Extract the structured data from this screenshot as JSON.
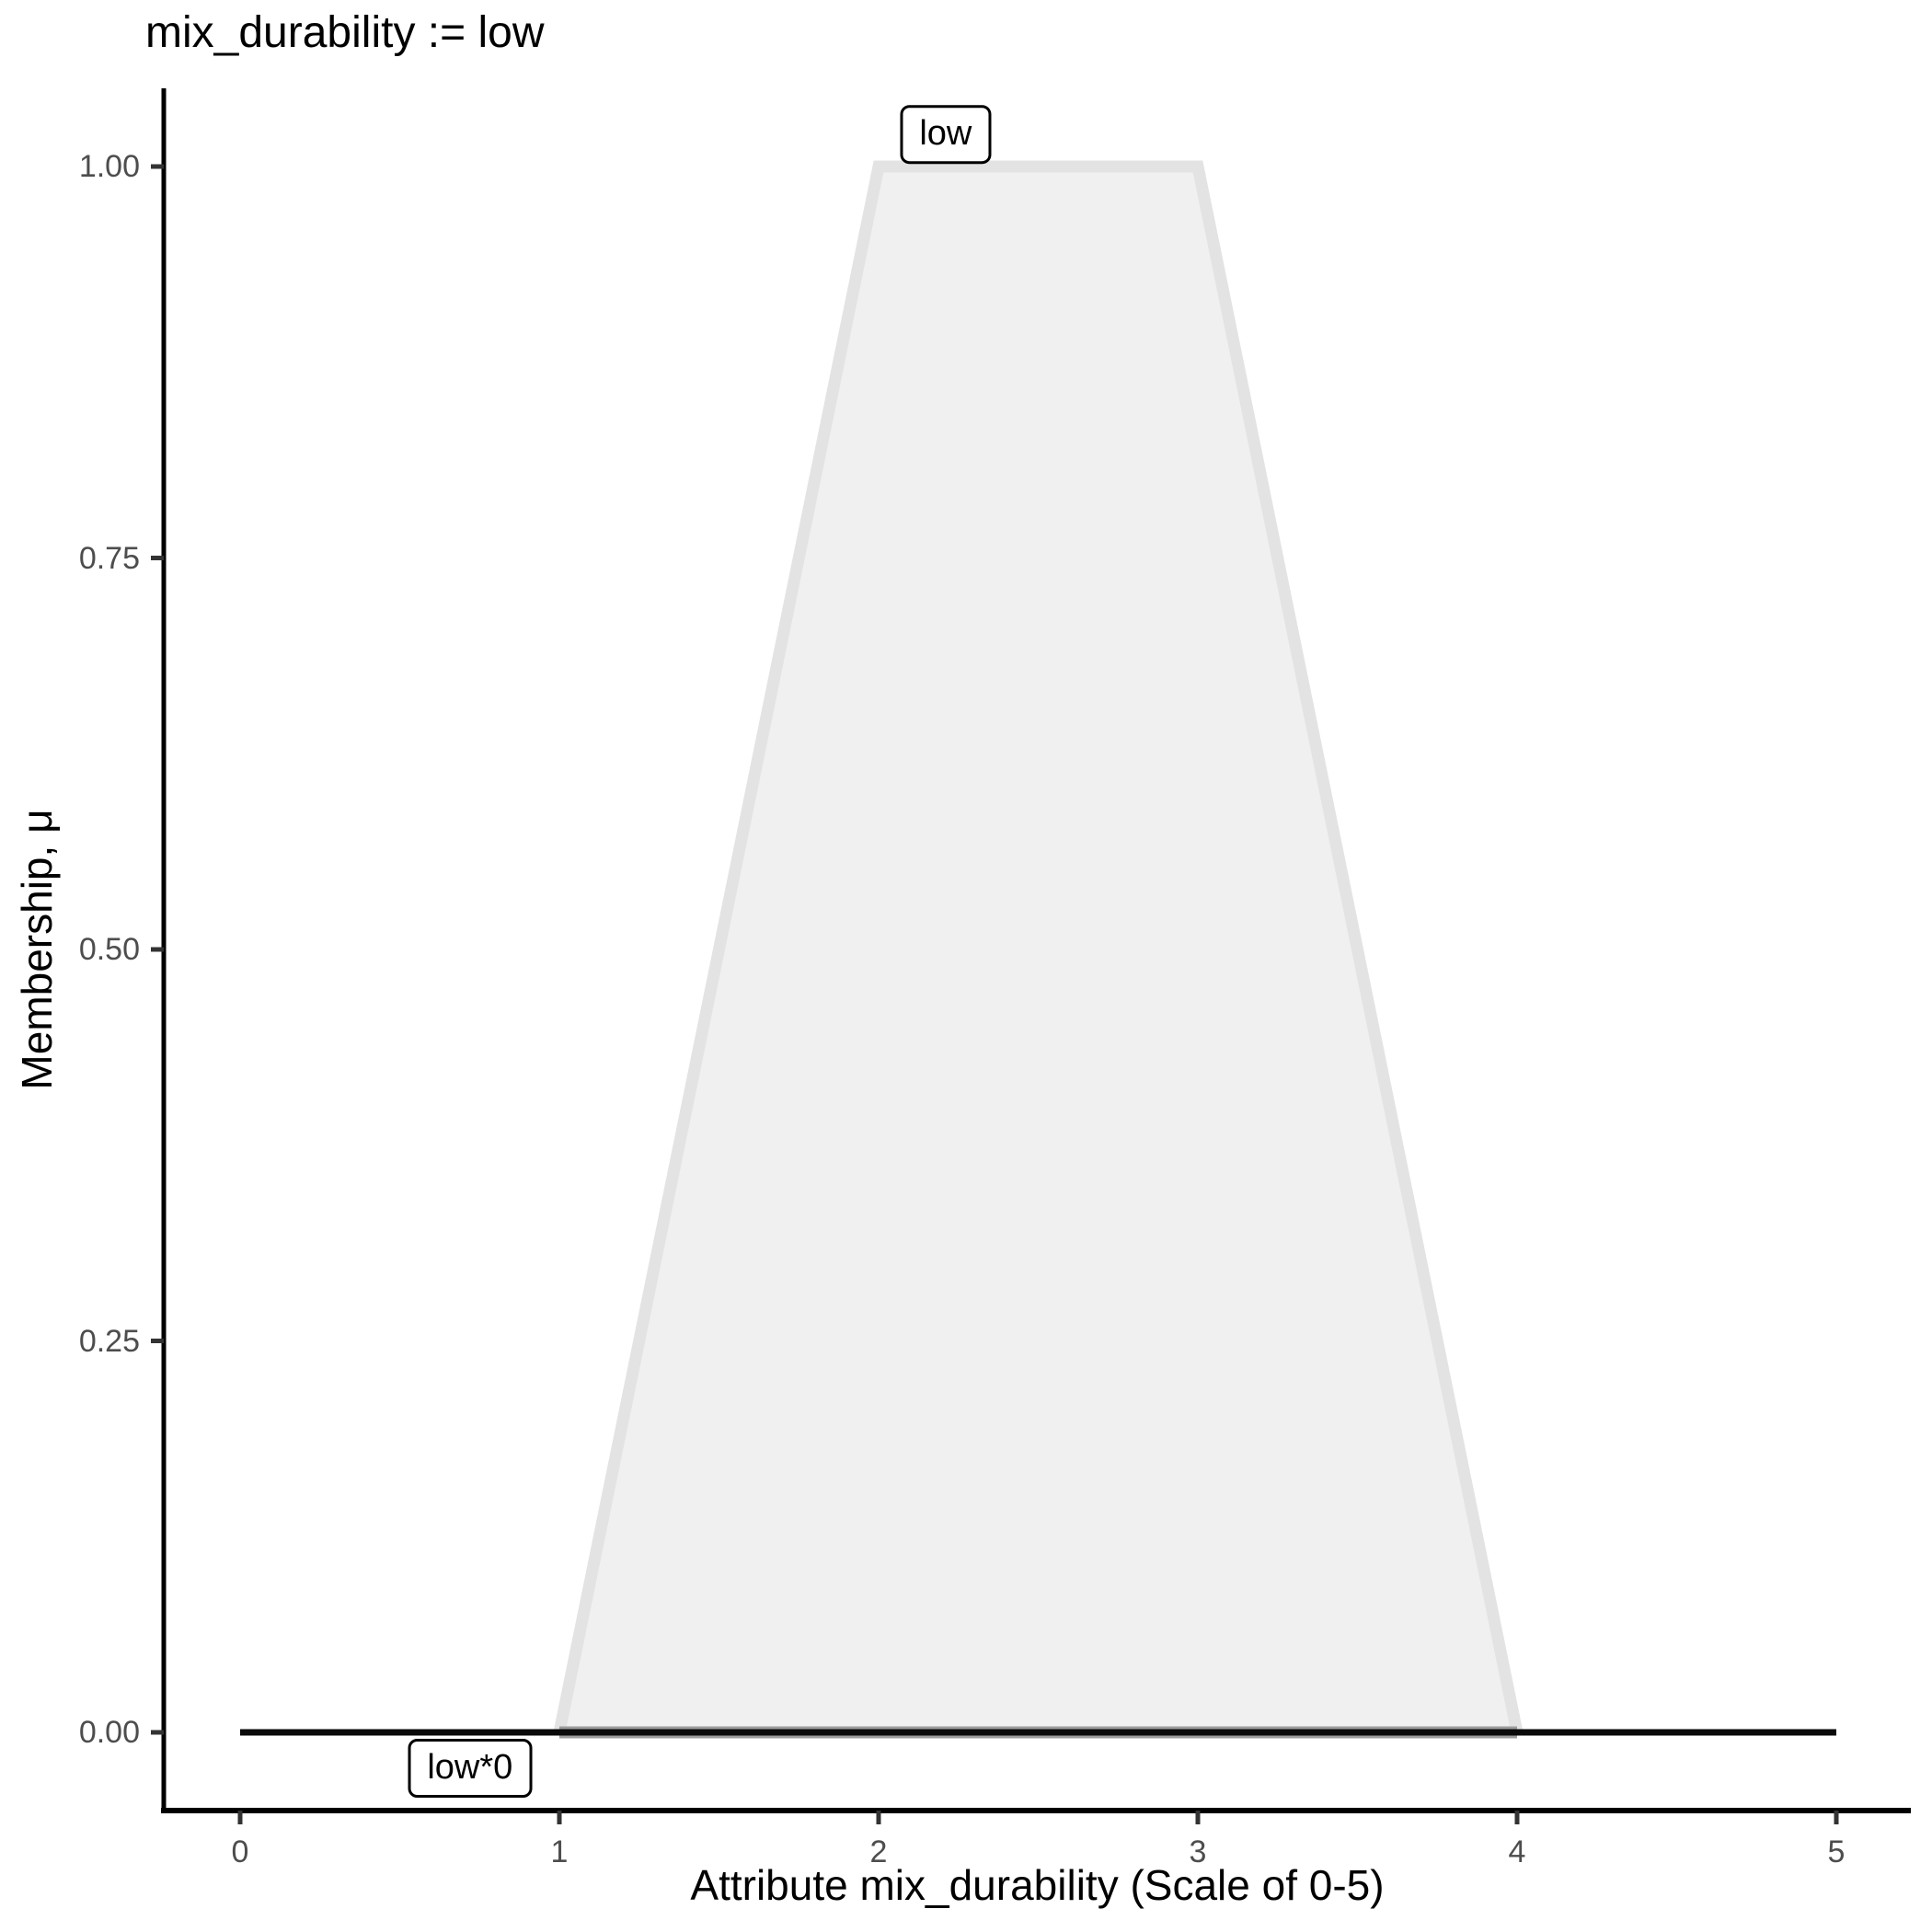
{
  "title": "mix_durability := low",
  "chart_data": {
    "type": "area",
    "title": "mix_durability := low",
    "xlabel": "Attribute mix_durability (Scale of 0-5)",
    "ylabel": "Membership, μ",
    "xlim": [
      0,
      5
    ],
    "ylim": [
      0,
      1
    ],
    "grid": false,
    "legend": "none",
    "x_ticks": {
      "values": [
        0,
        1,
        2,
        3,
        4,
        5
      ],
      "labels": [
        "0",
        "1",
        "2",
        "3",
        "4",
        "5"
      ]
    },
    "y_ticks": {
      "values": [
        0,
        0.25,
        0.5,
        0.75,
        1
      ],
      "labels": [
        "0.00",
        "0.25",
        "0.50",
        "0.75",
        "1.00"
      ]
    },
    "series": [
      {
        "name": "low",
        "kind": "polygon",
        "description": "trapezoidal membership function",
        "points": [
          [
            1,
            0
          ],
          [
            2,
            1
          ],
          [
            3,
            1
          ],
          [
            4,
            0
          ]
        ],
        "fill": "#F0F0F0",
        "stroke": "#E3E3E3",
        "stroke_width": 13,
        "baseline_stroke": "#9C9C9C",
        "baseline_width": 13
      },
      {
        "name": "low*0",
        "kind": "line",
        "description": "membership scaled by 0 (flat zero line)",
        "points": [
          [
            0,
            0
          ],
          [
            5,
            0
          ]
        ],
        "stroke": "#0A0A0A",
        "stroke_width": 7
      }
    ],
    "annotations": [
      {
        "text": "low",
        "x": 2.21,
        "y": 1,
        "anchor": "above"
      },
      {
        "text": "low*0",
        "x": 0.72,
        "y": 0,
        "anchor": "below"
      }
    ]
  },
  "colors": {
    "background": "#FFFFFF",
    "axis_line": "#000000",
    "tick_mark": "#333333",
    "tick_label": "#4D4D4D",
    "title_text": "#000000",
    "mf_fill": "#F0F0F0",
    "mf_stroke": "#E3E3E3",
    "mf_baseline": "#9C9C9C",
    "result_line": "#0A0A0A",
    "label_box_border": "#000000",
    "label_box_fill": "#FFFFFF"
  }
}
